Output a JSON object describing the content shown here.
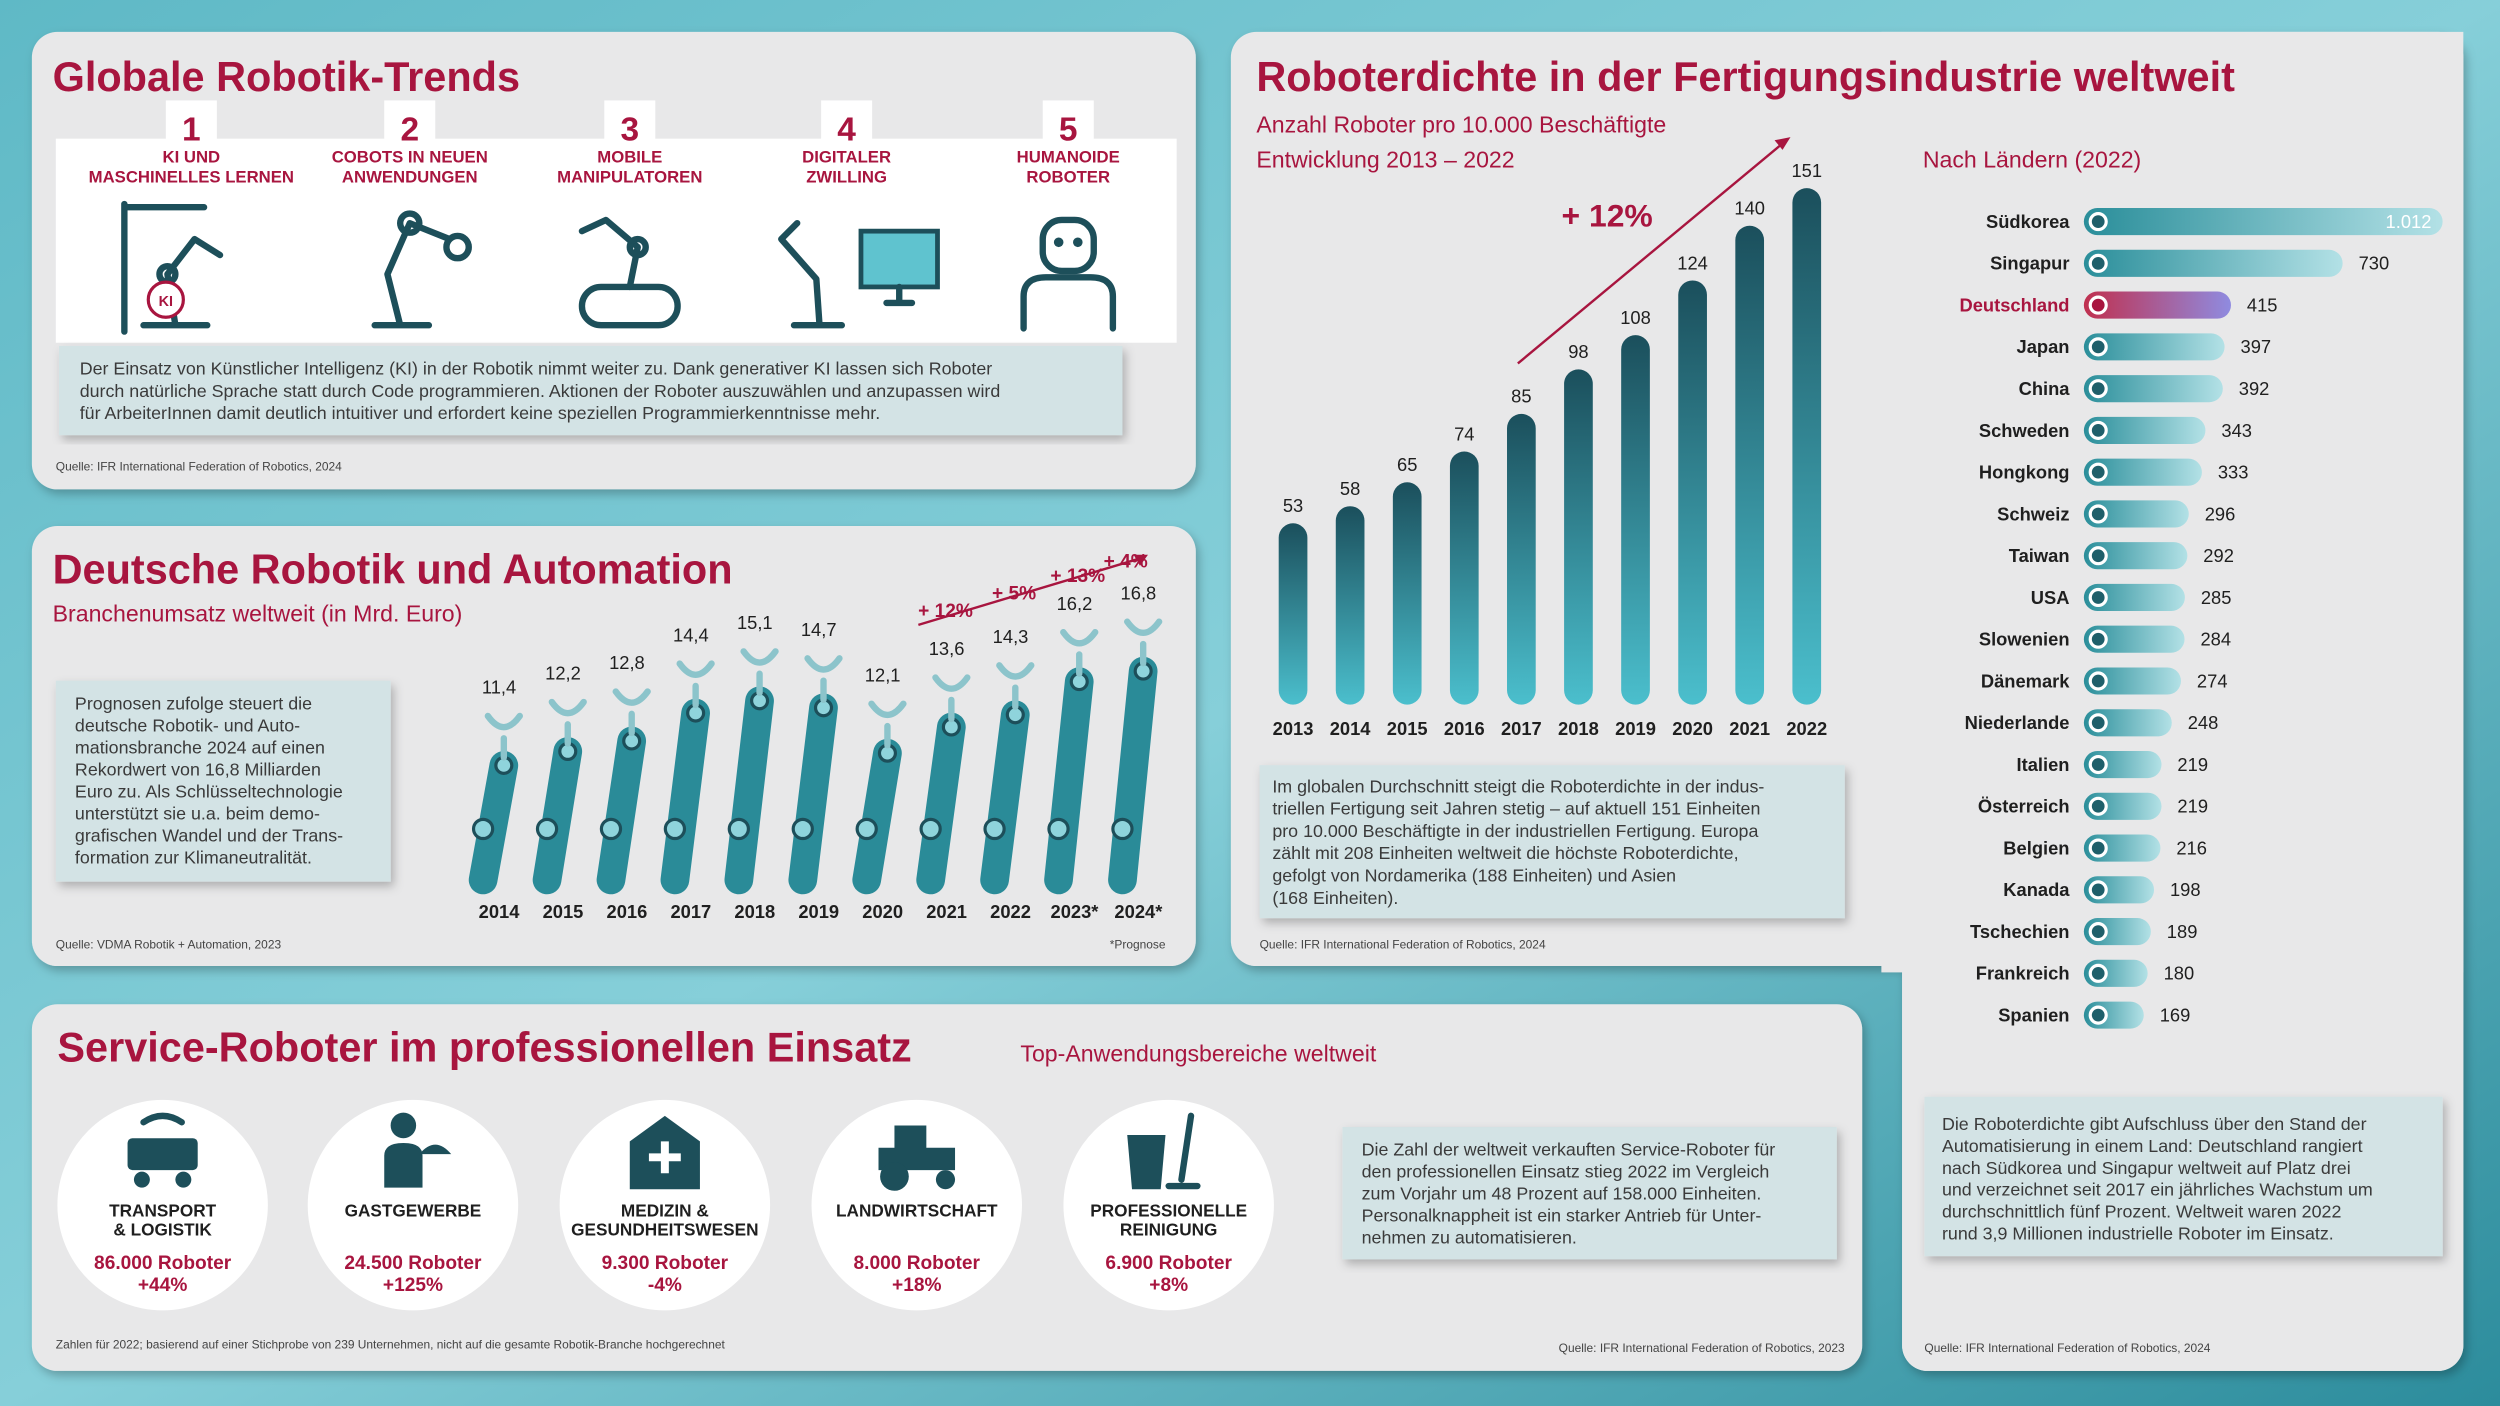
{
  "chart_data": [
    {
      "type": "pictorial",
      "title": "Deutsche Robotik und Automation",
      "subtitle": "Branchenumsatz weltweit (in Mrd. Euro)",
      "categories": [
        "2014",
        "2015",
        "2016",
        "2017",
        "2018",
        "2019",
        "2020",
        "2021",
        "2022",
        "2023*",
        "2024*"
      ],
      "values": [
        11.4,
        12.2,
        12.8,
        14.4,
        15.1,
        14.7,
        12.1,
        13.6,
        14.3,
        16.2,
        16.8
      ],
      "value_labels": [
        "11,4",
        "12,2",
        "12,8",
        "14,4",
        "15,1",
        "14,7",
        "12,1",
        "13,6",
        "14,3",
        "16,2",
        "16,8"
      ],
      "color": "#2a8b98",
      "annotations": [
        "+ 12%",
        "+ 5%",
        "+ 13%",
        "+ 4%"
      ],
      "text": [
        "Prognosen zufolge steuert die",
        "deutsche Robotik- und Auto-",
        "mationsbranche 2024 auf einen",
        "Rekordwert von 16,8 Milliarden",
        "Euro zu. Als Schlüsseltechnologie",
        "unterstützt sie u.a. beim demo-",
        "grafischen Wandel und der Trans-",
        "formation zur Klimaneutralität."
      ],
      "source": "Quelle: VDMA Robotik + Automation, 2023",
      "footnote": "*Prognose"
    },
    {
      "type": "bar",
      "title": "Roboterdichte in der Fertigungsindustrie weltweit",
      "subtitle": [
        "Anzahl Roboter pro 10.000 Beschäftigte",
        "Entwicklung 2013 – 2022"
      ],
      "categories": [
        "2013",
        "2014",
        "2015",
        "2016",
        "2017",
        "2018",
        "2019",
        "2020",
        "2021",
        "2022"
      ],
      "values": [
        53,
        58,
        65,
        74,
        85,
        98,
        108,
        124,
        140,
        151
      ],
      "color": "#1b4f5c",
      "annotations": [
        "+ 12%"
      ],
      "text": [
        "Im globalen Durchschnitt steigt die Roboterdichte in der indus-",
        "triellen Fertigung seit Jahren stetig – auf aktuell 151 Einheiten",
        "pro 10.000 Beschäftigte in der industriellen Fertigung. Europa",
        "zählt mit 208 Einheiten weltweit die höchste Roboterdichte,",
        "gefolgt von Nordamerika (188 Einheiten) und Asien",
        "(168 Einheiten)."
      ],
      "source": "Quelle: IFR International Federation of Robotics, 2024"
    },
    {
      "type": "barh",
      "subtitle": "Nach Ländern (2022)",
      "categories": [
        "Südkorea",
        "Singapur",
        "Deutschland",
        "Japan",
        "China",
        "Schweden",
        "Hongkong",
        "Schweiz",
        "Taiwan",
        "USA",
        "Slowenien",
        "Dänemark",
        "Niederlande",
        "Italien",
        "Österreich",
        "Belgien",
        "Kanada",
        "Tschechien",
        "Frankreich",
        "Spanien"
      ],
      "values": [
        1012,
        730,
        415,
        397,
        392,
        343,
        333,
        296,
        292,
        285,
        284,
        274,
        248,
        219,
        219,
        216,
        198,
        189,
        180,
        169
      ],
      "value_labels": [
        "1.012",
        "730",
        "415",
        "397",
        "392",
        "343",
        "333",
        "296",
        "292",
        "285",
        "284",
        "274",
        "248",
        "219",
        "219",
        "216",
        "198",
        "189",
        "180",
        "169"
      ],
      "color": "#2a8e9a",
      "highlight": "Deutschland",
      "highlight_color": "#8f8be0",
      "text": [
        "Die Roboterdichte gibt Aufschluss über den Stand der",
        "Automatisierung in einem Land: Deutschland rangiert",
        "nach Südkorea und Singapur weltweit auf Platz drei",
        "und verzeichnet seit 2017 ein jährliches Wachstum um",
        "durchschnittlich fünf Prozent. Weltweit waren 2022",
        "rund 3,9 Millionen industrielle Roboter im Einsatz."
      ],
      "source": "Quelle: IFR International Federation of Robotics, 2024"
    }
  ],
  "trends": {
    "title": "Globale Robotik-Trends",
    "icon_label": "KI",
    "items": [
      {
        "number": 1,
        "label": [
          "KI UND",
          "MASCHINELLES LERNEN"
        ]
      },
      {
        "number": 2,
        "label": [
          "COBOTS IN NEUEN",
          "ANWENDUNGEN"
        ]
      },
      {
        "number": 3,
        "label": [
          "MOBILE",
          "MANIPULATOREN"
        ]
      },
      {
        "number": 4,
        "label": [
          "DIGITALER",
          "ZWILLING"
        ]
      },
      {
        "number": 5,
        "label": [
          "HUMANOIDE",
          "ROBOTER"
        ]
      }
    ],
    "text": [
      "Der Einsatz von Künstlicher Intelligenz (KI) in der Robotik nimmt weiter zu. Dank generativer KI lassen sich Roboter",
      "durch natürliche Sprache statt durch Code programmieren. Aktionen der Roboter auszuwählen und anzupassen wird",
      "für ArbeiterInnen damit deutlich intuitiver und erfordert keine speziellen Programmierkenntnisse mehr."
    ],
    "source": "Quelle: IFR International Federation of Robotics, 2024"
  },
  "service": {
    "title": "Service-Roboter im professionellen Einsatz",
    "subtitle": "Top-Anwendungsbereiche weltweit",
    "items": [
      {
        "name": [
          "TRANSPORT",
          "& LOGISTIK"
        ],
        "count": "86.000 Roboter",
        "change": "+44%"
      },
      {
        "name": [
          "GASTGEWERBE"
        ],
        "count": "24.500 Roboter",
        "change": "+125%"
      },
      {
        "name": [
          "MEDIZIN &",
          "GESUNDHEITSWESEN"
        ],
        "count": "9.300 Roboter",
        "change": "-4%"
      },
      {
        "name": [
          "LANDWIRTSCHAFT"
        ],
        "count": "8.000 Roboter",
        "change": "+18%"
      },
      {
        "name": [
          "PROFESSIONELLE",
          "REINIGUNG"
        ],
        "count": "6.900 Roboter",
        "change": "+8%"
      }
    ],
    "text": [
      "Die Zahl der weltweit verkauften Service-Roboter für",
      "den professionellen Einsatz stieg 2022 im Vergleich",
      "zum Vorjahr um 48 Prozent auf 158.000 Einheiten.",
      "Personalknappheit ist ein starker Antrieb für Unter-",
      "nehmen zu automatisieren."
    ],
    "footnote": "Zahlen für 2022; basierend auf einer Stichprobe von 239 Unternehmen, nicht auf die gesamte Robotik-Branche hochgerechnet",
    "source": "Quelle: IFR International Federation of Robotics, 2023"
  }
}
